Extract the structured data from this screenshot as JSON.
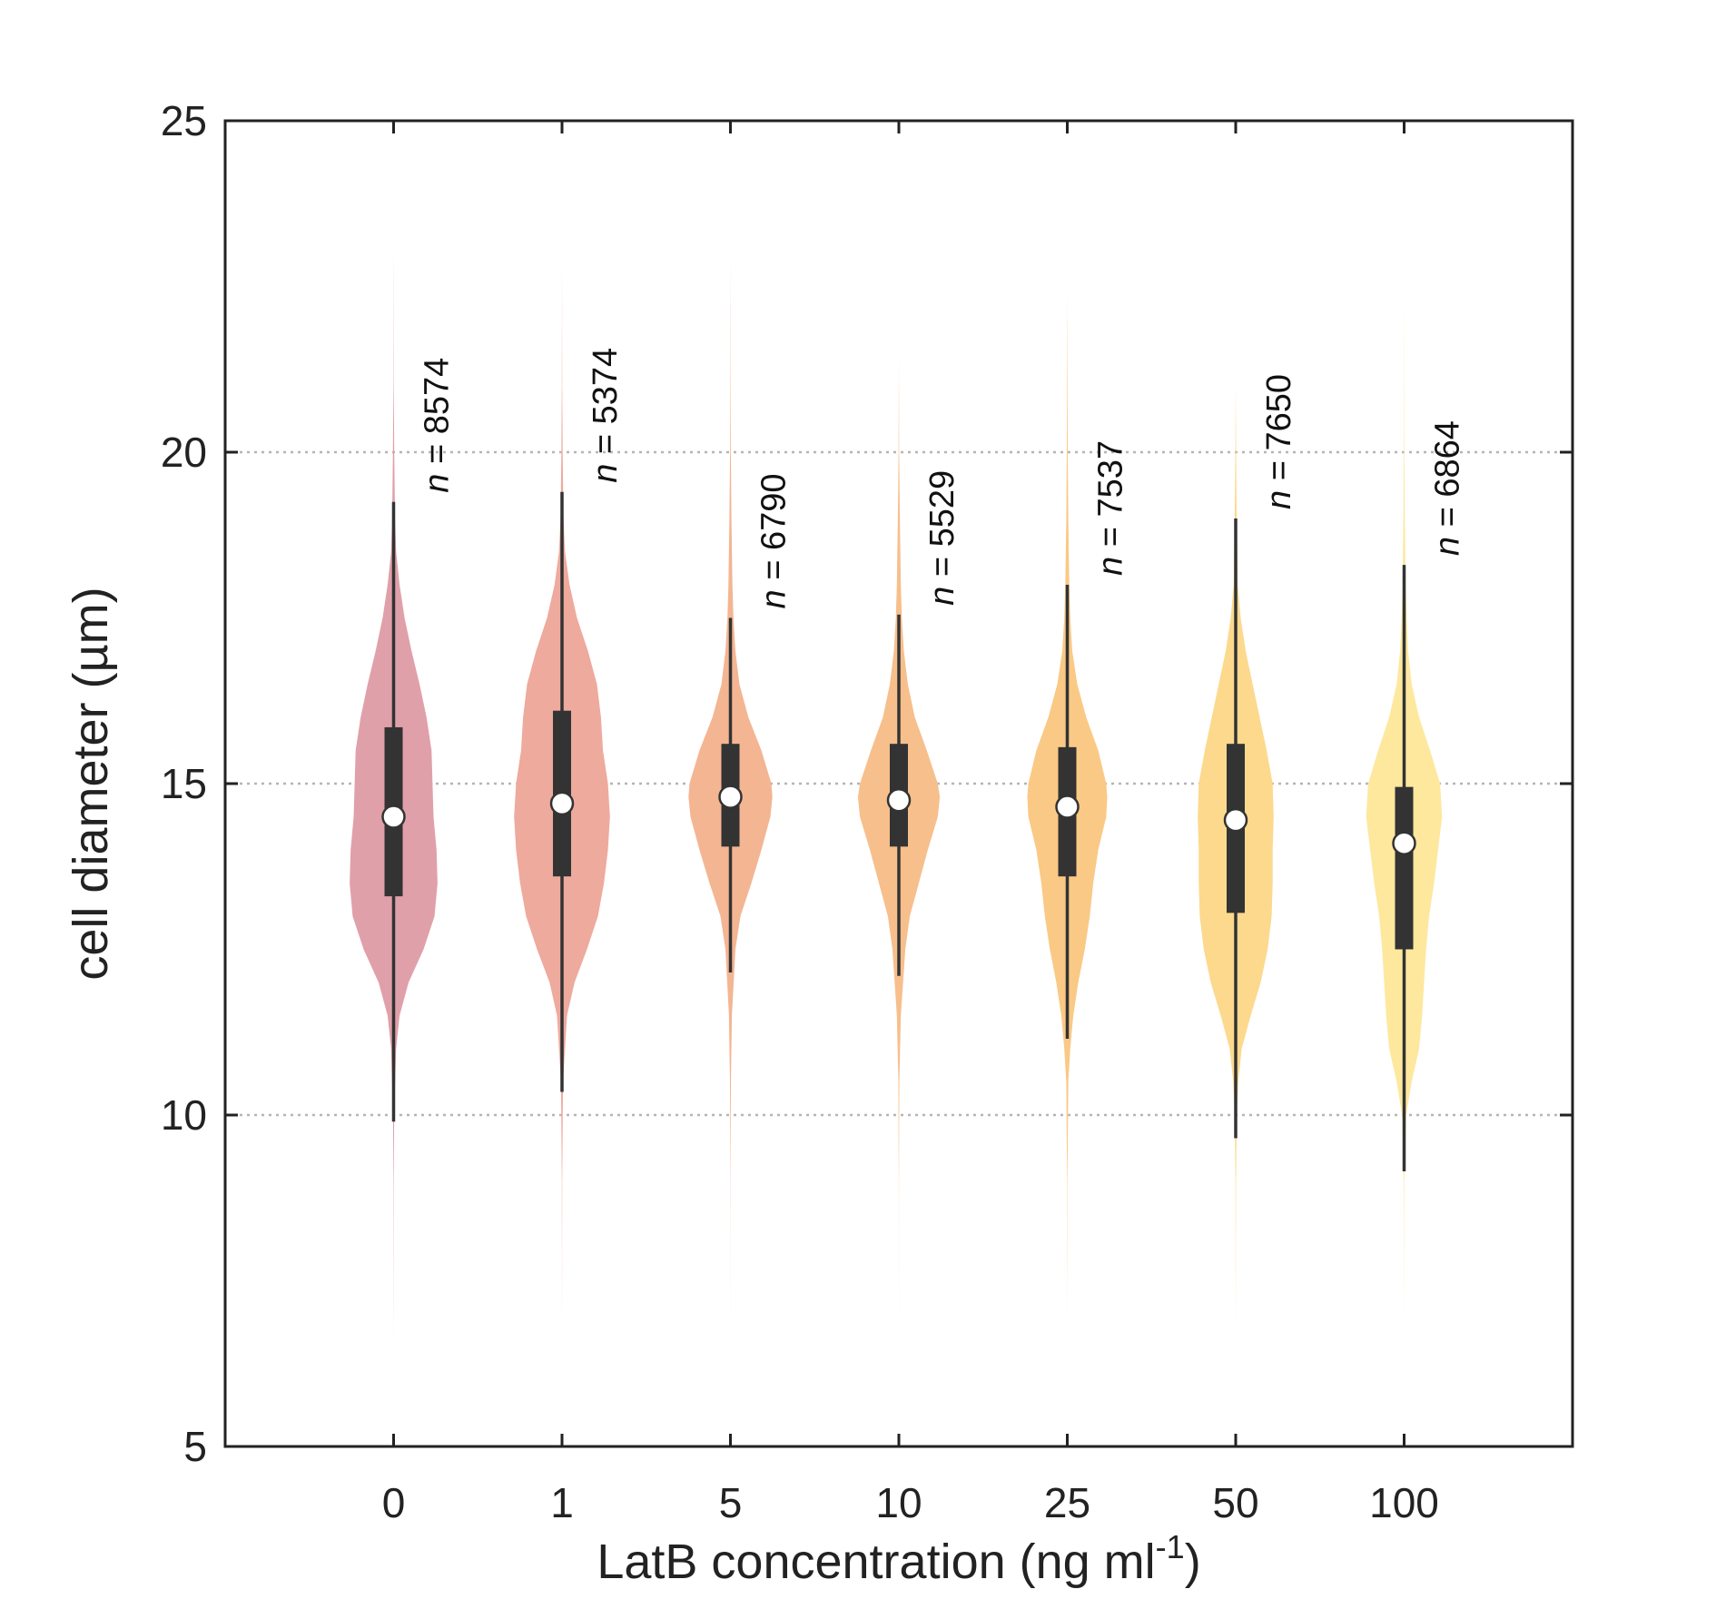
{
  "chart_data": {
    "type": "violin",
    "title": "",
    "xlabel": "LatB concentration (ng ml",
    "xlabel_superscript": "-1",
    "xlabel_suffix": ")",
    "ylabel": "cell diameter (µm)",
    "ylim": [
      5,
      25
    ],
    "yticks": [
      5,
      10,
      15,
      20,
      25
    ],
    "grid": "horizontal dotted at 10, 15, 20",
    "categories": [
      "0",
      "1",
      "5",
      "10",
      "25",
      "50",
      "100"
    ],
    "n_prefix": "n",
    "n_values": [
      "= 8574",
      "= 5374",
      "= 6790",
      "= 5529",
      "= 7537",
      "= 7650",
      "= 6864"
    ],
    "colors": [
      "#e0a0a9",
      "#eeaa9d",
      "#f4b592",
      "#f7bf8c",
      "#fac985",
      "#fcd98d",
      "#fde89e"
    ],
    "series": [
      {
        "category": "0",
        "median": 14.5,
        "q1": 13.3,
        "q3": 15.85,
        "whisker_low": 9.9,
        "whisker_high": 19.25,
        "range": [
          6.5,
          23.2
        ],
        "profile": [
          [
            6.5,
            0.0
          ],
          [
            9.0,
            0.003
          ],
          [
            10.0,
            0.01
          ],
          [
            11.0,
            0.05
          ],
          [
            11.5,
            0.12
          ],
          [
            12.0,
            0.3
          ],
          [
            12.5,
            0.6
          ],
          [
            13.0,
            0.82
          ],
          [
            13.5,
            0.88
          ],
          [
            14.0,
            0.86
          ],
          [
            14.5,
            0.8
          ],
          [
            15.0,
            0.78
          ],
          [
            15.5,
            0.76
          ],
          [
            16.0,
            0.66
          ],
          [
            16.5,
            0.52
          ],
          [
            17.0,
            0.36
          ],
          [
            17.5,
            0.22
          ],
          [
            18.0,
            0.12
          ],
          [
            18.5,
            0.05
          ],
          [
            19.0,
            0.03
          ],
          [
            20.0,
            0.012
          ],
          [
            21.0,
            0.004
          ],
          [
            23.2,
            0.0
          ]
        ]
      },
      {
        "category": "1",
        "median": 14.7,
        "q1": 13.6,
        "q3": 16.1,
        "whisker_low": 10.35,
        "whisker_high": 19.4,
        "range": [
          6.9,
          22.8
        ],
        "profile": [
          [
            6.9,
            0.0
          ],
          [
            9.0,
            0.003
          ],
          [
            10.5,
            0.02
          ],
          [
            11.5,
            0.1
          ],
          [
            12.0,
            0.25
          ],
          [
            12.5,
            0.5
          ],
          [
            13.0,
            0.72
          ],
          [
            13.5,
            0.84
          ],
          [
            14.0,
            0.92
          ],
          [
            14.5,
            0.96
          ],
          [
            15.0,
            0.92
          ],
          [
            15.5,
            0.82
          ],
          [
            16.0,
            0.78
          ],
          [
            16.5,
            0.7
          ],
          [
            17.0,
            0.52
          ],
          [
            17.5,
            0.3
          ],
          [
            18.0,
            0.15
          ],
          [
            18.5,
            0.06
          ],
          [
            19.0,
            0.03
          ],
          [
            20.0,
            0.012
          ],
          [
            21.0,
            0.004
          ],
          [
            22.8,
            0.0
          ]
        ]
      },
      {
        "category": "5",
        "median": 14.8,
        "q1": 14.05,
        "q3": 15.6,
        "whisker_low": 12.15,
        "whisker_high": 17.5,
        "range": [
          6.8,
          23.0
        ],
        "profile": [
          [
            6.8,
            0.0
          ],
          [
            9.0,
            0.002
          ],
          [
            10.5,
            0.01
          ],
          [
            11.5,
            0.03
          ],
          [
            12.5,
            0.1
          ],
          [
            13.0,
            0.2
          ],
          [
            13.5,
            0.42
          ],
          [
            14.0,
            0.62
          ],
          [
            14.5,
            0.8
          ],
          [
            14.8,
            0.84
          ],
          [
            15.0,
            0.82
          ],
          [
            15.5,
            0.62
          ],
          [
            16.0,
            0.36
          ],
          [
            16.5,
            0.18
          ],
          [
            17.0,
            0.1
          ],
          [
            17.5,
            0.06
          ],
          [
            18.0,
            0.04
          ],
          [
            19.0,
            0.02
          ],
          [
            20.0,
            0.008
          ],
          [
            21.0,
            0.003
          ],
          [
            23.0,
            0.0
          ]
        ]
      },
      {
        "category": "10",
        "median": 14.75,
        "q1": 14.05,
        "q3": 15.6,
        "whisker_low": 12.1,
        "whisker_high": 17.55,
        "range": [
          6.9,
          21.4
        ],
        "profile": [
          [
            6.9,
            0.0
          ],
          [
            9.0,
            0.002
          ],
          [
            10.5,
            0.01
          ],
          [
            11.5,
            0.04
          ],
          [
            12.5,
            0.13
          ],
          [
            13.0,
            0.22
          ],
          [
            13.5,
            0.4
          ],
          [
            14.0,
            0.58
          ],
          [
            14.5,
            0.78
          ],
          [
            14.8,
            0.82
          ],
          [
            15.0,
            0.78
          ],
          [
            15.5,
            0.56
          ],
          [
            16.0,
            0.32
          ],
          [
            16.5,
            0.18
          ],
          [
            17.0,
            0.1
          ],
          [
            17.5,
            0.06
          ],
          [
            18.0,
            0.04
          ],
          [
            19.0,
            0.02
          ],
          [
            20.0,
            0.006
          ],
          [
            21.4,
            0.0
          ]
        ]
      },
      {
        "category": "25",
        "median": 14.65,
        "q1": 13.6,
        "q3": 15.55,
        "whisker_low": 11.15,
        "whisker_high": 18.0,
        "range": [
          6.8,
          22.4
        ],
        "profile": [
          [
            6.8,
            0.0
          ],
          [
            9.0,
            0.003
          ],
          [
            10.5,
            0.02
          ],
          [
            11.0,
            0.06
          ],
          [
            11.5,
            0.12
          ],
          [
            12.0,
            0.22
          ],
          [
            12.5,
            0.35
          ],
          [
            13.0,
            0.45
          ],
          [
            13.5,
            0.52
          ],
          [
            14.0,
            0.62
          ],
          [
            14.5,
            0.78
          ],
          [
            14.8,
            0.8
          ],
          [
            15.0,
            0.78
          ],
          [
            15.5,
            0.62
          ],
          [
            16.0,
            0.38
          ],
          [
            16.5,
            0.2
          ],
          [
            17.0,
            0.1
          ],
          [
            17.5,
            0.06
          ],
          [
            18.0,
            0.04
          ],
          [
            19.0,
            0.02
          ],
          [
            20.0,
            0.01
          ],
          [
            22.4,
            0.0
          ]
        ]
      },
      {
        "category": "50",
        "median": 14.45,
        "q1": 13.05,
        "q3": 15.6,
        "whisker_low": 9.65,
        "whisker_high": 19.0,
        "range": [
          6.8,
          21.0
        ],
        "profile": [
          [
            6.8,
            0.0
          ],
          [
            9.0,
            0.005
          ],
          [
            10.0,
            0.02
          ],
          [
            10.5,
            0.05
          ],
          [
            11.0,
            0.12
          ],
          [
            11.5,
            0.3
          ],
          [
            12.0,
            0.5
          ],
          [
            12.5,
            0.64
          ],
          [
            13.0,
            0.72
          ],
          [
            13.5,
            0.74
          ],
          [
            14.0,
            0.74
          ],
          [
            14.5,
            0.76
          ],
          [
            15.0,
            0.74
          ],
          [
            15.5,
            0.62
          ],
          [
            16.0,
            0.48
          ],
          [
            16.5,
            0.34
          ],
          [
            17.0,
            0.2
          ],
          [
            17.5,
            0.1
          ],
          [
            18.0,
            0.04
          ],
          [
            19.0,
            0.02
          ],
          [
            20.0,
            0.008
          ],
          [
            21.0,
            0.0
          ]
        ]
      },
      {
        "category": "100",
        "median": 14.1,
        "q1": 12.5,
        "q3": 14.95,
        "whisker_low": 9.15,
        "whisker_high": 18.3,
        "range": [
          6.8,
          22.4
        ],
        "profile": [
          [
            6.8,
            0.0
          ],
          [
            9.0,
            0.005
          ],
          [
            10.0,
            0.04
          ],
          [
            10.5,
            0.15
          ],
          [
            11.0,
            0.3
          ],
          [
            11.5,
            0.36
          ],
          [
            12.0,
            0.4
          ],
          [
            12.5,
            0.44
          ],
          [
            13.0,
            0.5
          ],
          [
            13.5,
            0.6
          ],
          [
            14.0,
            0.68
          ],
          [
            14.5,
            0.76
          ],
          [
            15.0,
            0.72
          ],
          [
            15.5,
            0.52
          ],
          [
            16.0,
            0.3
          ],
          [
            16.5,
            0.15
          ],
          [
            17.0,
            0.08
          ],
          [
            17.5,
            0.05
          ],
          [
            18.0,
            0.03
          ],
          [
            19.0,
            0.015
          ],
          [
            20.0,
            0.006
          ],
          [
            22.4,
            0.0
          ]
        ]
      }
    ]
  }
}
